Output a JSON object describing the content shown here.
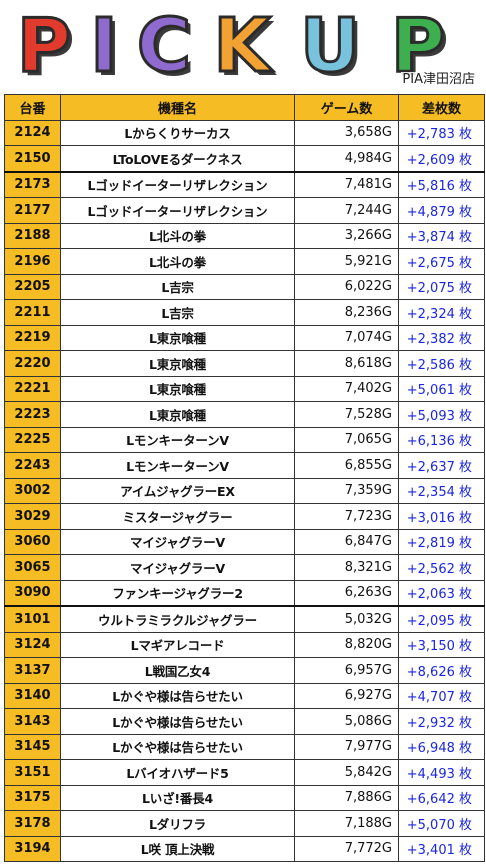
{
  "header": {
    "logo_letters": [
      "P",
      "I",
      "C",
      "K",
      "U",
      "P"
    ],
    "logo_colors": [
      "#e23b2e",
      "#8f6bd0",
      "#8f6bd0",
      "#f2a233",
      "#78c2de",
      "#3eaf4f"
    ],
    "store_name": "PIA津田沼店"
  },
  "table": {
    "columns": [
      "台番",
      "機種名",
      "ゲーム数",
      "差枚数"
    ],
    "rows": [
      {
        "no": "2124",
        "name": "Lからくりサーカス",
        "games": "3,658G",
        "diff": "+2,783 枚"
      },
      {
        "no": "2150",
        "name": "LToLOVEるダークネス",
        "games": "4,984G",
        "diff": "+2,609 枚"
      },
      {
        "no": "2173",
        "name": "Lゴッドイーターリザレクション",
        "games": "7,481G",
        "diff": "+5,816 枚"
      },
      {
        "no": "2177",
        "name": "Lゴッドイーターリザレクション",
        "games": "7,244G",
        "diff": "+4,879 枚"
      },
      {
        "no": "2188",
        "name": "L北斗の拳",
        "games": "3,266G",
        "diff": "+3,874 枚"
      },
      {
        "no": "2196",
        "name": "L北斗の拳",
        "games": "5,921G",
        "diff": "+2,675 枚"
      },
      {
        "no": "2205",
        "name": "L吉宗",
        "games": "6,022G",
        "diff": "+2,075 枚"
      },
      {
        "no": "2211",
        "name": "L吉宗",
        "games": "8,236G",
        "diff": "+2,324 枚"
      },
      {
        "no": "2219",
        "name": "L東京喰種",
        "games": "7,074G",
        "diff": "+2,382 枚"
      },
      {
        "no": "2220",
        "name": "L東京喰種",
        "games": "8,618G",
        "diff": "+2,586 枚"
      },
      {
        "no": "2221",
        "name": "L東京喰種",
        "games": "7,402G",
        "diff": "+5,061 枚"
      },
      {
        "no": "2223",
        "name": "L東京喰種",
        "games": "7,528G",
        "diff": "+5,093 枚"
      },
      {
        "no": "2225",
        "name": "LモンキーターンV",
        "games": "7,065G",
        "diff": "+6,136 枚"
      },
      {
        "no": "2243",
        "name": "LモンキーターンV",
        "games": "6,855G",
        "diff": "+2,637 枚"
      },
      {
        "no": "3002",
        "name": "アイムジャグラーEX",
        "games": "7,359G",
        "diff": "+2,354 枚"
      },
      {
        "no": "3029",
        "name": "ミスタージャグラー",
        "games": "7,723G",
        "diff": "+3,016 枚"
      },
      {
        "no": "3060",
        "name": "マイジャグラーV",
        "games": "6,847G",
        "diff": "+2,819 枚"
      },
      {
        "no": "3065",
        "name": "マイジャグラーV",
        "games": "8,321G",
        "diff": "+2,562 枚"
      },
      {
        "no": "3090",
        "name": "ファンキージャグラー2",
        "games": "6,263G",
        "diff": "+2,063 枚"
      },
      {
        "no": "3101",
        "name": "ウルトラミラクルジャグラー",
        "games": "5,032G",
        "diff": "+2,095 枚"
      },
      {
        "no": "3124",
        "name": "Lマギアレコード",
        "games": "8,820G",
        "diff": "+3,150 枚"
      },
      {
        "no": "3137",
        "name": "L戦国乙女4",
        "games": "6,957G",
        "diff": "+8,626 枚"
      },
      {
        "no": "3140",
        "name": "Lかぐや様は告らせたい",
        "games": "6,927G",
        "diff": "+4,707 枚"
      },
      {
        "no": "3143",
        "name": "Lかぐや様は告らせたい",
        "games": "5,086G",
        "diff": "+2,932 枚"
      },
      {
        "no": "3145",
        "name": "Lかぐや様は告らせたい",
        "games": "7,977G",
        "diff": "+6,948 枚"
      },
      {
        "no": "3151",
        "name": "Lバイオハザード5",
        "games": "5,842G",
        "diff": "+4,493 枚"
      },
      {
        "no": "3175",
        "name": "Lいざ!番長4",
        "games": "7,886G",
        "diff": "+6,642 枚"
      },
      {
        "no": "3178",
        "name": "Lダリフラ",
        "games": "7,188G",
        "diff": "+5,070 枚"
      },
      {
        "no": "3194",
        "name": "L咲 頂上決戦",
        "games": "7,772G",
        "diff": "+3,401 枚"
      }
    ]
  },
  "colors": {
    "header_bg": "#f6bc23",
    "number_cell_bg": "#f6bc23",
    "diff_text": "#1c26e0"
  }
}
